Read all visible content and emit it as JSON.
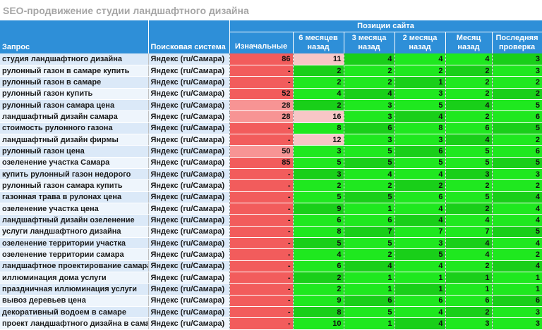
{
  "title": "SEO-продвижение студии ландшафтного дизайна",
  "headers": {
    "query": "Запрос",
    "engine": "Поисковая система",
    "group": "Позиции сайта",
    "initial": "Изначальные",
    "periods": [
      "6 месяцев назад",
      "3 месяца назад",
      "2 месяца назад",
      "Месяц назад",
      "Последняя проверка"
    ]
  },
  "colors": {
    "header_bg": "#2e8fd8",
    "initial_bad": "#f25c5c",
    "initial_mid": "#f79494",
    "pos_light_red": "#f7c6c6",
    "pos_good": "#1fe81f",
    "pos_good_dark": "#19cf19"
  },
  "rows": [
    {
      "query": "студия ландшафтного дизайна",
      "engine": "Яндекс (ru/Самара)",
      "initial": "86",
      "p": [
        "11",
        "4",
        "4",
        "4",
        "3"
      ]
    },
    {
      "query": "рулонный газон в самаре купить",
      "engine": "Яндекс (ru/Самара)",
      "initial": "-",
      "p": [
        "2",
        "2",
        "2",
        "2",
        "3"
      ]
    },
    {
      "query": "рулонный газон в самаре",
      "engine": "Яндекс (ru/Самара)",
      "initial": "-",
      "p": [
        "2",
        "2",
        "1",
        "2",
        "2"
      ]
    },
    {
      "query": "рулонный газон купить",
      "engine": "Яндекс (ru/Самара)",
      "initial": "52",
      "p": [
        "4",
        "4",
        "3",
        "2",
        "2"
      ]
    },
    {
      "query": "рулонный газон самара цена",
      "engine": "Яндекс (ru/Самара)",
      "initial": "28",
      "p": [
        "2",
        "3",
        "5",
        "4",
        "5"
      ]
    },
    {
      "query": "ландшафтный дизайн самара",
      "engine": "Яндекс (ru/Самара)",
      "initial": "28",
      "p": [
        "16",
        "3",
        "4",
        "2",
        "6"
      ]
    },
    {
      "query": "стоимость рулонного газона",
      "engine": "Яндекс (ru/Самара)",
      "initial": "-",
      "p": [
        "8",
        "6",
        "8",
        "6",
        "5"
      ]
    },
    {
      "query": "ландшафтный дизайн фирмы",
      "engine": "Яндекс (ru/Самара)",
      "initial": "-",
      "p": [
        "12",
        "3",
        "3",
        "4",
        "2"
      ]
    },
    {
      "query": "рулонный газон цена",
      "engine": "Яндекс (ru/Самара)",
      "initial": "50",
      "p": [
        "3",
        "5",
        "6",
        "5",
        "6"
      ]
    },
    {
      "query": "озеленение участка Самара",
      "engine": "Яндекс (ru/Самара)",
      "initial": "85",
      "p": [
        "5",
        "5",
        "5",
        "5",
        "5"
      ]
    },
    {
      "query": "купить рулонный газон недорого",
      "engine": "Яндекс (ru/Самара)",
      "initial": "-",
      "p": [
        "3",
        "4",
        "4",
        "3",
        "3"
      ]
    },
    {
      "query": "рулонный газон самара купить",
      "engine": "Яндекс (ru/Самара)",
      "initial": "-",
      "p": [
        "2",
        "2",
        "2",
        "2",
        "2"
      ]
    },
    {
      "query": "газонная трава в рулонах цена",
      "engine": "Яндекс (ru/Самара)",
      "initial": "-",
      "p": [
        "5",
        "5",
        "6",
        "5",
        "4"
      ]
    },
    {
      "query": "озеленение участка цена",
      "engine": "Яндекс (ru/Самара)",
      "initial": "-",
      "p": [
        "9",
        "1",
        "4",
        "2",
        "4"
      ]
    },
    {
      "query": "ландшафтный дизайн озеленение",
      "engine": "Яндекс (ru/Самара)",
      "initial": "-",
      "p": [
        "6",
        "6",
        "4",
        "4",
        "4"
      ]
    },
    {
      "query": "услуги ландшафтного дизайна",
      "engine": "Яндекс (ru/Самара)",
      "initial": "-",
      "p": [
        "8",
        "7",
        "7",
        "7",
        "5"
      ]
    },
    {
      "query": "озеленение территории участка",
      "engine": "Яндекс (ru/Самара)",
      "initial": "-",
      "p": [
        "5",
        "5",
        "3",
        "4",
        "4"
      ]
    },
    {
      "query": "озеленение территории самара",
      "engine": "Яндекс (ru/Самара)",
      "initial": "-",
      "p": [
        "4",
        "2",
        "5",
        "4",
        "2"
      ]
    },
    {
      "query": "ландшафтное проектирование самара",
      "engine": "Яндекс (ru/Самара)",
      "initial": "-",
      "p": [
        "6",
        "4",
        "4",
        "2",
        "4"
      ]
    },
    {
      "query": "иллюминация дома услуги",
      "engine": "Яндекс (ru/Самара)",
      "initial": "-",
      "p": [
        "2",
        "1",
        "1",
        "1",
        "1"
      ]
    },
    {
      "query": "праздничная иллюминация услуги",
      "engine": "Яндекс (ru/Самара)",
      "initial": "-",
      "p": [
        "2",
        "1",
        "1",
        "1",
        "1"
      ]
    },
    {
      "query": "вывоз деревьев цена",
      "engine": "Яндекс (ru/Самара)",
      "initial": "-",
      "p": [
        "9",
        "6",
        "6",
        "6",
        "6"
      ]
    },
    {
      "query": "декоративный водоем в самаре",
      "engine": "Яндекс (ru/Самара)",
      "initial": "-",
      "p": [
        "8",
        "5",
        "4",
        "2",
        "3"
      ]
    },
    {
      "query": "проект ландшафтного дизайна в самаре",
      "engine": "Яндекс (ru/Самара)",
      "initial": "-",
      "p": [
        "10",
        "1",
        "4",
        "3",
        "3"
      ]
    }
  ]
}
